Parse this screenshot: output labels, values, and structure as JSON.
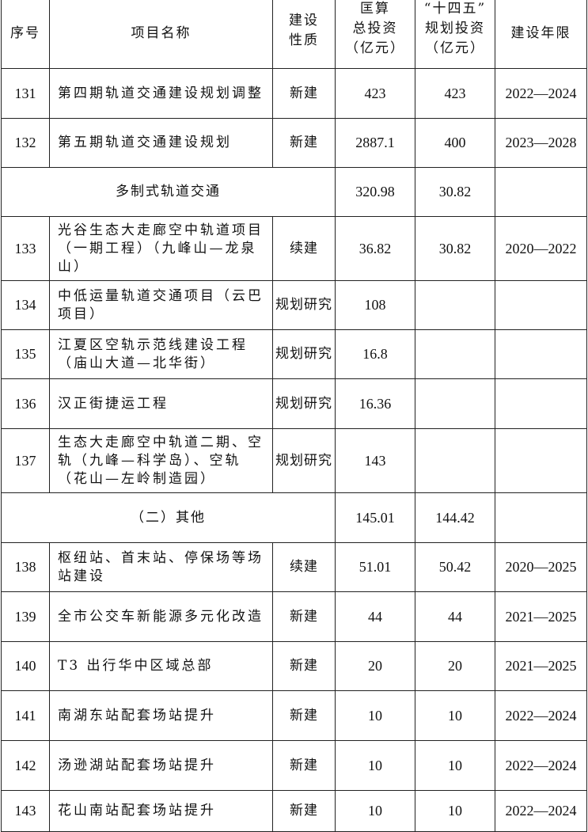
{
  "header": {
    "no": "序号",
    "name": "项目名称",
    "nature": "建设\n性质",
    "total": "匡算\n总投资\n（亿元）",
    "plan": "“十四五”\n规划投资\n（亿元）",
    "period": "建设年限"
  },
  "rows": [
    {
      "type": "item",
      "no": "131",
      "name": "第四期轨道交通建设规划调整",
      "nature": "新建",
      "total": "423",
      "plan": "423",
      "period": "2022—2024"
    },
    {
      "type": "item",
      "no": "132",
      "name": "第五期轨道交通建设规划",
      "nature": "新建",
      "total": "2887.1",
      "plan": "400",
      "period": "2023—2028"
    },
    {
      "type": "group",
      "name": "多制式轨道交通",
      "total": "320.98",
      "plan": "30.82"
    },
    {
      "type": "item",
      "no": "133",
      "name": "光谷生态大走廊空中轨道项目（一期工程）（九峰山—龙泉山）",
      "nature": "续建",
      "total": "36.82",
      "plan": "30.82",
      "period": "2020—2022"
    },
    {
      "type": "item",
      "no": "134",
      "name": "中低运量轨道交通项目（云巴项目）",
      "nature": "规划研究",
      "total": "108",
      "plan": "",
      "period": ""
    },
    {
      "type": "item",
      "no": "135",
      "name": "江夏区空轨示范线建设工程（庙山大道—北华街）",
      "nature": "规划研究",
      "total": "16.8",
      "plan": "",
      "period": ""
    },
    {
      "type": "item",
      "no": "136",
      "name": "汉正街捷运工程",
      "nature": "规划研究",
      "total": "16.36",
      "plan": "",
      "period": ""
    },
    {
      "type": "item",
      "no": "137",
      "name": "生态大走廊空中轨道二期、空轨（九峰—科学岛）、空轨（花山—左岭制造园）",
      "nature": "规划研究",
      "total": "143",
      "plan": "",
      "period": ""
    },
    {
      "type": "group",
      "name": "（二）其他",
      "total": "145.01",
      "plan": "144.42"
    },
    {
      "type": "item",
      "no": "138",
      "name": "枢纽站、首末站、停保场等场站建设",
      "nature": "续建",
      "total": "51.01",
      "plan": "50.42",
      "period": "2020—2025"
    },
    {
      "type": "item",
      "no": "139",
      "name": "全市公交车新能源多元化改造",
      "nature": "新建",
      "total": "44",
      "plan": "44",
      "period": "2021—2025"
    },
    {
      "type": "item",
      "no": "140",
      "name": "T3 出行华中区域总部",
      "nature": "新建",
      "total": "20",
      "plan": "20",
      "period": "2021—2025"
    },
    {
      "type": "item",
      "no": "141",
      "name": "南湖东站配套场站提升",
      "nature": "新建",
      "total": "10",
      "plan": "10",
      "period": "2022—2024"
    },
    {
      "type": "item",
      "no": "142",
      "name": "汤逊湖站配套场站提升",
      "nature": "新建",
      "total": "10",
      "plan": "10",
      "period": "2022—2024"
    },
    {
      "type": "item",
      "no": "143",
      "name": "花山南站配套场站提升",
      "nature": "新建",
      "total": "10",
      "plan": "10",
      "period": "2022—2024"
    }
  ]
}
